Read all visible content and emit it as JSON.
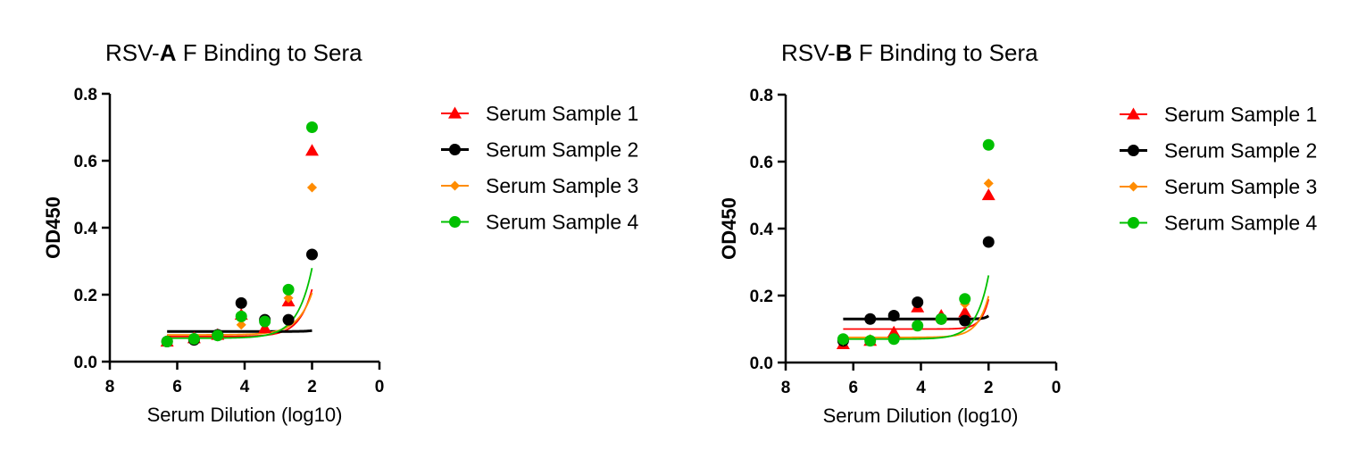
{
  "chart_data": [
    {
      "type": "scatter",
      "title_prefix": "RSV-",
      "title_bold": "A",
      "title_suffix": " F Binding to Sera",
      "xlabel": "Serum Dilution (log10)",
      "ylabel": "OD450",
      "xlim": [
        8,
        0
      ],
      "ylim": [
        0,
        0.8
      ],
      "x_ticks": [
        8,
        6,
        4,
        2,
        0
      ],
      "y_ticks": [
        0.0,
        0.2,
        0.4,
        0.6,
        0.8
      ],
      "x_tick_labels": [
        "8",
        "6",
        "4",
        "2",
        "0"
      ],
      "y_tick_labels": [
        "0.0",
        "0.2",
        "0.4",
        "0.6",
        "0.8"
      ],
      "legend_position": "right",
      "series": [
        {
          "name": "Serum Sample 1",
          "color": "#ff0000",
          "marker": "triangle",
          "x": [
            6.3,
            5.5,
            4.8,
            4.1,
            3.4,
            2.7,
            2.0
          ],
          "y": [
            0.06,
            0.07,
            0.08,
            0.14,
            0.1,
            0.18,
            0.63
          ],
          "fit": {
            "bottom": 0.075,
            "a": 1.9,
            "k": 2.6
          }
        },
        {
          "name": "Serum Sample 2",
          "color": "#000000",
          "marker": "circle",
          "x": [
            6.3,
            5.5,
            4.8,
            4.1,
            3.4,
            2.7,
            2.0
          ],
          "y": [
            0.06,
            0.065,
            0.08,
            0.175,
            0.125,
            0.125,
            0.32
          ],
          "fit": {
            "bottom": 0.09,
            "a": 0.23,
            "k": 4.5
          }
        },
        {
          "name": "Serum Sample 3",
          "color": "#ff8c00",
          "marker": "diamond",
          "x": [
            6.3,
            5.5,
            4.8,
            4.1,
            3.4,
            2.7,
            2.0
          ],
          "y": [
            0.06,
            0.07,
            0.075,
            0.11,
            0.12,
            0.19,
            0.52
          ],
          "fit": {
            "bottom": 0.08,
            "a": 1.25,
            "k": 2.3
          }
        },
        {
          "name": "Serum Sample 4",
          "color": "#00c000",
          "marker": "circle",
          "x": [
            6.3,
            5.5,
            4.8,
            4.1,
            3.4,
            2.7,
            2.0
          ],
          "y": [
            0.06,
            0.068,
            0.078,
            0.135,
            0.12,
            0.215,
            0.7
          ],
          "fit": {
            "bottom": 0.07,
            "a": 2.09,
            "k": 2.3
          }
        }
      ]
    },
    {
      "type": "scatter",
      "title_prefix": "RSV-",
      "title_bold": "B",
      "title_suffix": " F Binding to Sera",
      "xlabel": "Serum Dilution (log10)",
      "ylabel": "OD450",
      "xlim": [
        8,
        0
      ],
      "ylim": [
        0,
        0.8
      ],
      "x_ticks": [
        8,
        6,
        4,
        2,
        0
      ],
      "y_ticks": [
        0.0,
        0.2,
        0.4,
        0.6,
        0.8
      ],
      "x_tick_labels": [
        "8",
        "6",
        "4",
        "2",
        "0"
      ],
      "y_tick_labels": [
        "0.0",
        "0.2",
        "0.4",
        "0.6",
        "0.8"
      ],
      "legend_position": "right",
      "series": [
        {
          "name": "Serum Sample 1",
          "color": "#ff0000",
          "marker": "triangle",
          "x": [
            6.3,
            5.5,
            4.8,
            4.1,
            3.4,
            2.7,
            2.0
          ],
          "y": [
            0.055,
            0.065,
            0.09,
            0.165,
            0.14,
            0.15,
            0.5
          ],
          "fit": {
            "bottom": 0.1,
            "a": 8.0,
            "k": 4.5
          }
        },
        {
          "name": "Serum Sample 2",
          "color": "#000000",
          "marker": "circle",
          "x": [
            6.3,
            5.5,
            4.8,
            4.1,
            3.4,
            2.7,
            2.0
          ],
          "y": [
            0.065,
            0.13,
            0.14,
            0.18,
            0.13,
            0.125,
            0.36
          ],
          "fit": {
            "bottom": 0.13,
            "a": 27.6,
            "k": 8.0
          }
        },
        {
          "name": "Serum Sample 3",
          "color": "#ff8c00",
          "marker": "diamond",
          "x": [
            6.3,
            5.5,
            4.8,
            4.1,
            3.4,
            2.7,
            2.0
          ],
          "y": [
            0.065,
            0.065,
            0.07,
            0.11,
            0.13,
            0.175,
            0.535
          ],
          "fit": {
            "bottom": 0.075,
            "a": 2.74,
            "k": 3.1
          }
        },
        {
          "name": "Serum Sample 4",
          "color": "#00c000",
          "marker": "circle",
          "x": [
            6.3,
            5.5,
            4.8,
            4.1,
            3.4,
            2.7,
            2.0
          ],
          "y": [
            0.07,
            0.065,
            0.07,
            0.11,
            0.13,
            0.19,
            0.65
          ],
          "fit": {
            "bottom": 0.07,
            "a": 2.83,
            "k": 2.7
          }
        }
      ]
    }
  ]
}
